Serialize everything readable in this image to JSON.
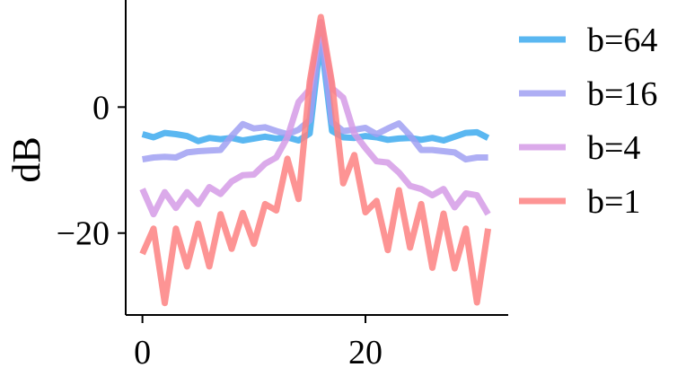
{
  "chart_data": {
    "type": "line",
    "title": "",
    "xlabel": "",
    "ylabel": "dB",
    "xlim": [
      -1.5,
      32.8
    ],
    "ylim": [
      -33,
      17
    ],
    "xticks": [
      0,
      20
    ],
    "yticks": [
      0,
      -20
    ],
    "xtick_labels": [
      "0",
      "20"
    ],
    "ytick_labels": [
      "0",
      "−20"
    ],
    "grid": false,
    "legend_position": "right",
    "x": [
      0,
      1,
      2,
      3,
      4,
      5,
      6,
      7,
      8,
      9,
      10,
      11,
      12,
      13,
      14,
      15,
      16,
      17,
      18,
      19,
      20,
      21,
      22,
      23,
      24,
      25,
      26,
      27,
      28,
      29,
      30,
      31
    ],
    "series": [
      {
        "name": "b=64",
        "color": "#3daaee",
        "values": [
          -4.3,
          -4.8,
          -4.1,
          -4.3,
          -4.6,
          -5.4,
          -4.9,
          -5.1,
          -4.9,
          -5.3,
          -5.0,
          -4.7,
          -5.0,
          -4.8,
          -5.3,
          -4.2,
          11.0,
          -3.8,
          -4.8,
          -4.9,
          -4.6,
          -4.8,
          -5.2,
          -5.0,
          -4.9,
          -5.2,
          -4.9,
          -5.3,
          -4.7,
          -4.1,
          -4.0,
          -4.9
        ]
      },
      {
        "name": "b=16",
        "color": "#a0a0f2",
        "values": [
          -8.3,
          -8.0,
          -7.9,
          -8.0,
          -7.2,
          -7.0,
          -6.9,
          -6.8,
          -4.6,
          -2.7,
          -3.4,
          -3.2,
          -3.8,
          -4.3,
          -3.6,
          -2.1,
          12.5,
          -2.4,
          -3.8,
          -3.6,
          -3.3,
          -4.3,
          -3.4,
          -2.6,
          -4.5,
          -6.8,
          -6.8,
          -7.0,
          -7.2,
          -8.3,
          -8.0,
          -8.0
        ]
      },
      {
        "name": "b=4",
        "color": "#d59be6",
        "values": [
          -13.0,
          -17.0,
          -13.5,
          -16.0,
          -13.5,
          -15.4,
          -12.7,
          -13.8,
          -11.8,
          -10.8,
          -10.7,
          -9.0,
          -8.0,
          -4.8,
          0.8,
          2.8,
          13.5,
          3.0,
          1.5,
          -4.2,
          -6.5,
          -8.6,
          -8.8,
          -10.4,
          -12.5,
          -13.0,
          -14.0,
          -13.0,
          -15.9,
          -13.7,
          -14.0,
          -17.0
        ]
      },
      {
        "name": "b=1",
        "color": "#fd8181",
        "values": [
          -23.3,
          -19.3,
          -31.1,
          -19.3,
          -25.3,
          -18.5,
          -25.3,
          -17.0,
          -22.5,
          -16.8,
          -21.7,
          -15.4,
          -16.4,
          -8.2,
          -14.6,
          4.0,
          14.3,
          3.8,
          -12.1,
          -7.6,
          -16.7,
          -14.9,
          -22.7,
          -13.2,
          -22.3,
          -15.4,
          -25.5,
          -16.9,
          -25.6,
          -19.3,
          -31.0,
          -19.3
        ]
      }
    ]
  }
}
